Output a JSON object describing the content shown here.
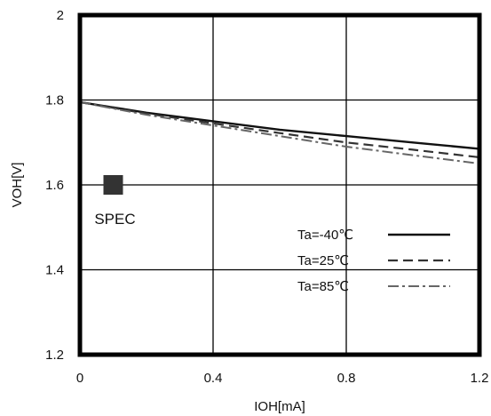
{
  "chart_data": {
    "type": "line",
    "title": "",
    "xlabel": "IOH[mA]",
    "ylabel": "VOH[V]",
    "xlim": [
      0,
      1.2
    ],
    "ylim": [
      1.2,
      2.0
    ],
    "x_ticks": [
      "0",
      "0.4",
      "0.8",
      "1.2"
    ],
    "y_ticks": [
      "1.2",
      "1.4",
      "1.6",
      "1.8",
      "2"
    ],
    "grid": true,
    "legend_position": "lower-right",
    "series": [
      {
        "name": "Ta=-40℃",
        "style": "solid",
        "color": "#111111",
        "x": [
          0,
          0.2,
          0.4,
          0.6,
          0.8,
          1.0,
          1.2
        ],
        "y": [
          1.795,
          1.77,
          1.75,
          1.73,
          1.715,
          1.7,
          1.685
        ]
      },
      {
        "name": "Ta=25℃",
        "style": "dashed",
        "color": "#333333",
        "x": [
          0,
          0.2,
          0.4,
          0.6,
          0.8,
          1.0,
          1.2
        ],
        "y": [
          1.795,
          1.768,
          1.745,
          1.722,
          1.7,
          1.683,
          1.665
        ]
      },
      {
        "name": "Ta=85℃",
        "style": "dashdot",
        "color": "#666666",
        "x": [
          0,
          0.2,
          0.4,
          0.6,
          0.8,
          1.0,
          1.2
        ],
        "y": [
          1.795,
          1.765,
          1.74,
          1.715,
          1.69,
          1.67,
          1.65
        ]
      }
    ],
    "annotations": [
      {
        "label": "SPEC",
        "x": 0.1,
        "y": 1.6,
        "marker": "square",
        "color": "#333333"
      }
    ]
  }
}
